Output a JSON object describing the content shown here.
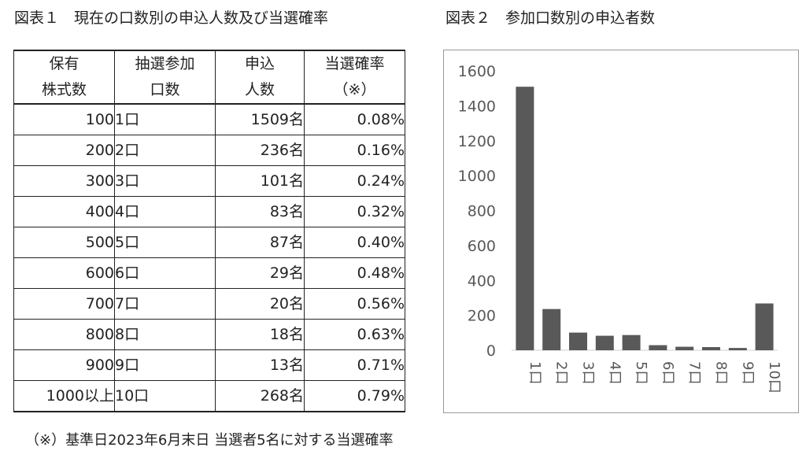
{
  "titles": {
    "table": "図表１　現在の口数別の申込人数及び当選確率",
    "chart": "図表２　参加口数別の申込者数"
  },
  "table": {
    "headers": [
      [
        "保有",
        "株式数"
      ],
      [
        "抽選参加",
        "口数"
      ],
      [
        "申込",
        "人数"
      ],
      [
        "当選確率",
        "（※）"
      ]
    ],
    "rows": [
      [
        "100",
        "1口",
        "1509名",
        "0.08%"
      ],
      [
        "200",
        "2口",
        "236名",
        "0.16%"
      ],
      [
        "300",
        "3口",
        "101名",
        "0.24%"
      ],
      [
        "400",
        "4口",
        "83名",
        "0.32%"
      ],
      [
        "500",
        "5口",
        "87名",
        "0.40%"
      ],
      [
        "600",
        "6口",
        "29名",
        "0.48%"
      ],
      [
        "700",
        "7口",
        "20名",
        "0.56%"
      ],
      [
        "800",
        "8口",
        "18名",
        "0.63%"
      ],
      [
        "900",
        "9口",
        "13名",
        "0.71%"
      ],
      [
        "1000以上",
        "10口",
        "268名",
        "0.79%"
      ]
    ]
  },
  "chart_data": {
    "type": "bar",
    "title": "図表２　参加口数別の申込者数",
    "categories": [
      "1口",
      "2口",
      "3口",
      "4口",
      "5口",
      "6口",
      "7口",
      "8口",
      "9口",
      "10口"
    ],
    "values": [
      1509,
      236,
      101,
      83,
      87,
      29,
      20,
      18,
      13,
      268
    ],
    "ylim": [
      0,
      1600
    ],
    "yticks": [
      0,
      200,
      400,
      600,
      800,
      1000,
      1200,
      1400,
      1600
    ],
    "grid": false,
    "bar_color": "#595959",
    "xlabel": "",
    "ylabel": ""
  },
  "footnote": "（※）基準日2023年6月末日 当選者5名に対する当選確率"
}
